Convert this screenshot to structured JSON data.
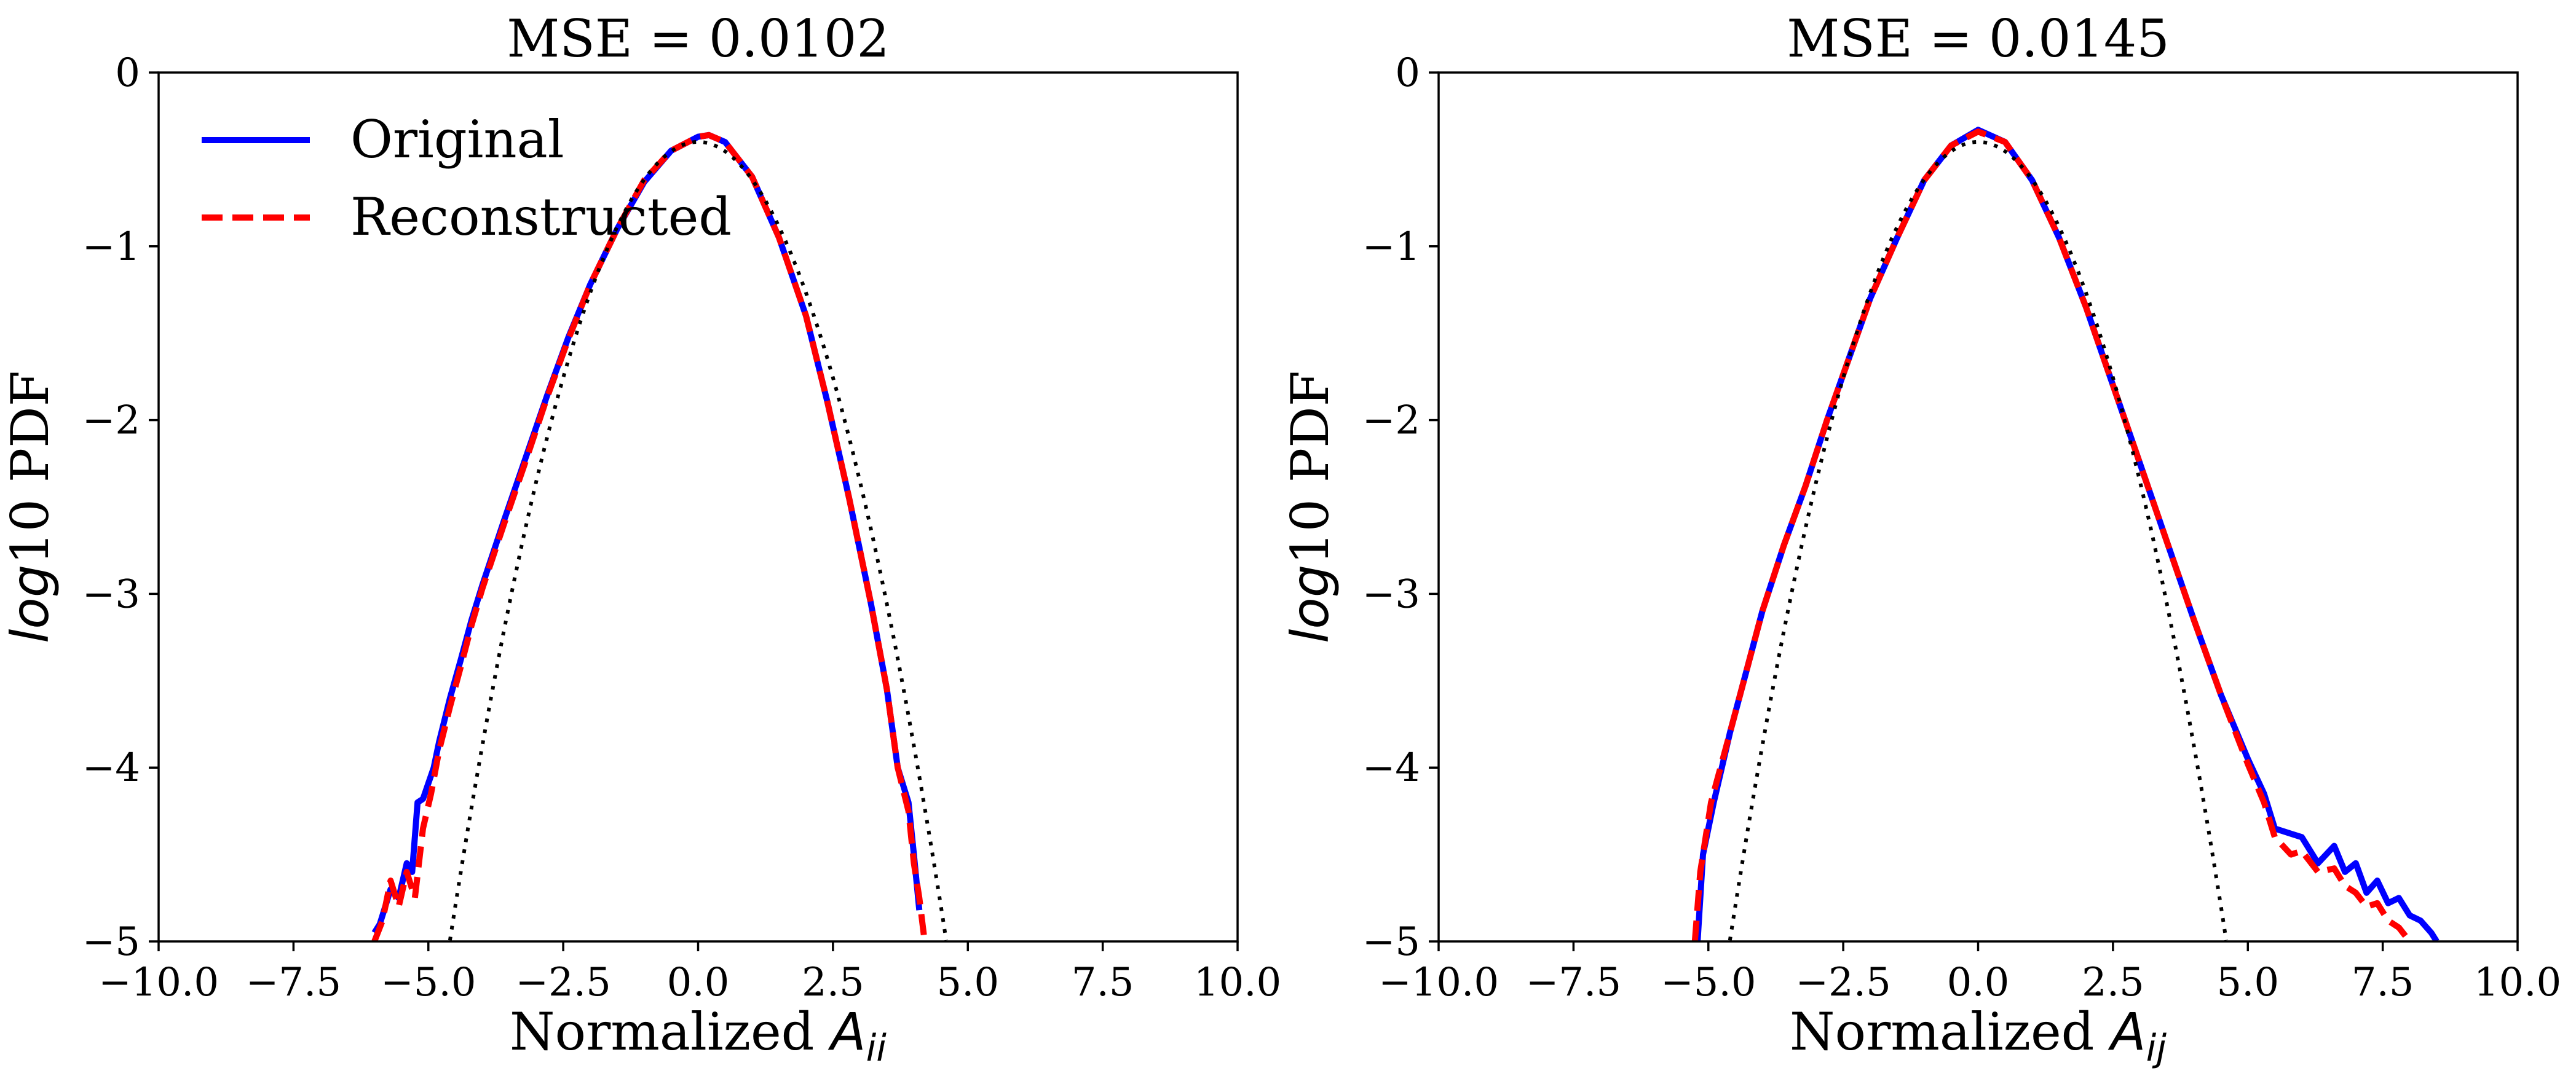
{
  "chart_data": [
    {
      "type": "line",
      "title": "MSE = 0.0102",
      "xlabel_text": "Normalized ",
      "xlabel_math": "A",
      "xlabel_sub": "ii",
      "ylabel_math": "log",
      "ylabel_text": "10 PDF",
      "xlim": [
        -10,
        10
      ],
      "ylim": [
        -5,
        0
      ],
      "xticks": [
        -10,
        -7.5,
        -5,
        -2.5,
        0,
        2.5,
        5,
        7.5,
        10
      ],
      "xtick_labels": [
        "−10.0",
        "−7.5",
        "−5.0",
        "−2.5",
        "0.0",
        "2.5",
        "5.0",
        "7.5",
        "10.0"
      ],
      "yticks": [
        0,
        -1,
        -2,
        -3,
        -4,
        -5
      ],
      "ytick_labels": [
        "0",
        "−1",
        "−2",
        "−3",
        "−4",
        "−5"
      ],
      "legend": {
        "location": "upper-left",
        "entries": [
          "Original",
          "Reconstructed"
        ]
      },
      "series": [
        {
          "name": "Original",
          "color": "#0000ff",
          "style": "solid",
          "x": [
            -6.0,
            -5.9,
            -5.7,
            -5.55,
            -5.4,
            -5.3,
            -5.2,
            -5.1,
            -4.9,
            -4.8,
            -4.6,
            -4.4,
            -4.2,
            -4.0,
            -3.6,
            -3.2,
            -2.8,
            -2.4,
            -2.0,
            -1.5,
            -1.0,
            -0.5,
            0.0,
            0.2,
            0.5,
            1.0,
            1.5,
            2.0,
            2.4,
            2.8,
            3.2,
            3.5,
            3.7,
            3.9,
            4.0,
            4.1
          ],
          "y": [
            -4.95,
            -4.9,
            -4.7,
            -4.75,
            -4.55,
            -4.6,
            -4.2,
            -4.18,
            -4.0,
            -3.85,
            -3.6,
            -3.38,
            -3.15,
            -2.95,
            -2.58,
            -2.22,
            -1.86,
            -1.52,
            -1.22,
            -0.9,
            -0.63,
            -0.45,
            -0.37,
            -0.36,
            -0.4,
            -0.6,
            -0.95,
            -1.4,
            -1.9,
            -2.45,
            -3.05,
            -3.55,
            -4.0,
            -4.2,
            -4.5,
            -4.82
          ]
        },
        {
          "name": "Reconstructed",
          "color": "#ff0000",
          "style": "dashed",
          "x": [
            -6.0,
            -5.85,
            -5.7,
            -5.55,
            -5.4,
            -5.25,
            -5.1,
            -4.95,
            -4.8,
            -4.6,
            -4.4,
            -4.2,
            -4.0,
            -3.6,
            -3.2,
            -2.8,
            -2.4,
            -2.0,
            -1.5,
            -1.0,
            -0.5,
            0.0,
            0.2,
            0.5,
            1.0,
            1.5,
            2.0,
            2.4,
            2.8,
            3.2,
            3.5,
            3.7,
            3.9,
            4.0,
            4.1,
            4.2
          ],
          "y": [
            -5.0,
            -4.88,
            -4.65,
            -4.8,
            -4.6,
            -4.75,
            -4.35,
            -4.15,
            -3.9,
            -3.65,
            -3.42,
            -3.18,
            -2.97,
            -2.6,
            -2.24,
            -1.87,
            -1.53,
            -1.22,
            -0.9,
            -0.62,
            -0.45,
            -0.37,
            -0.36,
            -0.4,
            -0.6,
            -0.95,
            -1.4,
            -1.9,
            -2.45,
            -3.05,
            -3.55,
            -4.0,
            -4.25,
            -4.55,
            -4.75,
            -5.0
          ]
        },
        {
          "color": "#000000",
          "style": "dotted",
          "gaussian": true,
          "x_range": [
            -4.6,
            4.6
          ],
          "mean": 0,
          "std": 1
        }
      ]
    },
    {
      "type": "line",
      "title": "MSE = 0.0145",
      "xlabel_text": "Normalized ",
      "xlabel_math": "A",
      "xlabel_sub": "ij",
      "ylabel_math": "log",
      "ylabel_text": "10 PDF",
      "xlim": [
        -10,
        10
      ],
      "ylim": [
        -5,
        0
      ],
      "xticks": [
        -10,
        -7.5,
        -5,
        -2.5,
        0,
        2.5,
        5,
        7.5,
        10
      ],
      "xtick_labels": [
        "−10.0",
        "−7.5",
        "−5.0",
        "−2.5",
        "0.0",
        "2.5",
        "5.0",
        "7.5",
        "10.0"
      ],
      "yticks": [
        0,
        -1,
        -2,
        -3,
        -4,
        -5
      ],
      "ytick_labels": [
        "0",
        "−1",
        "−2",
        "−3",
        "−4",
        "−5"
      ],
      "series": [
        {
          "name": "Original",
          "color": "#0000ff",
          "style": "solid",
          "x": [
            -5.2,
            -5.1,
            -4.9,
            -4.6,
            -4.3,
            -4.0,
            -3.6,
            -3.2,
            -2.8,
            -2.4,
            -2.0,
            -1.5,
            -1.0,
            -0.5,
            0.0,
            0.5,
            1.0,
            1.5,
            2.0,
            2.5,
            3.0,
            3.5,
            4.0,
            4.5,
            5.0,
            5.3,
            5.5,
            5.8,
            6.0,
            6.3,
            6.6,
            6.8,
            7.0,
            7.2,
            7.4,
            7.6,
            7.8,
            8.0,
            8.2,
            8.4,
            8.5
          ],
          "y": [
            -5.0,
            -4.5,
            -4.2,
            -3.8,
            -3.45,
            -3.1,
            -2.72,
            -2.38,
            -2.0,
            -1.65,
            -1.3,
            -0.95,
            -0.62,
            -0.42,
            -0.33,
            -0.4,
            -0.62,
            -0.95,
            -1.35,
            -1.8,
            -2.25,
            -2.7,
            -3.15,
            -3.58,
            -3.95,
            -4.15,
            -4.35,
            -4.38,
            -4.4,
            -4.55,
            -4.45,
            -4.6,
            -4.55,
            -4.72,
            -4.65,
            -4.78,
            -4.75,
            -4.85,
            -4.88,
            -4.95,
            -5.0
          ]
        },
        {
          "name": "Reconstructed",
          "color": "#ff0000",
          "style": "dashed",
          "x": [
            -5.25,
            -5.15,
            -4.95,
            -4.6,
            -4.3,
            -4.0,
            -3.6,
            -3.2,
            -2.8,
            -2.4,
            -2.0,
            -1.5,
            -1.0,
            -0.5,
            0.0,
            0.5,
            1.0,
            1.5,
            2.0,
            2.5,
            3.0,
            3.5,
            4.0,
            4.5,
            5.0,
            5.3,
            5.5,
            5.8,
            6.0,
            6.3,
            6.6,
            6.8,
            7.0,
            7.2,
            7.4,
            7.6,
            7.8,
            8.0
          ],
          "y": [
            -5.0,
            -4.6,
            -4.2,
            -3.8,
            -3.45,
            -3.1,
            -2.72,
            -2.38,
            -2.0,
            -1.65,
            -1.3,
            -0.95,
            -0.62,
            -0.42,
            -0.34,
            -0.4,
            -0.62,
            -0.95,
            -1.35,
            -1.8,
            -2.25,
            -2.7,
            -3.15,
            -3.58,
            -3.98,
            -4.2,
            -4.4,
            -4.5,
            -4.48,
            -4.6,
            -4.58,
            -4.68,
            -4.72,
            -4.8,
            -4.78,
            -4.88,
            -4.92,
            -5.0
          ]
        },
        {
          "color": "#000000",
          "style": "dotted",
          "gaussian": true,
          "x_range": [
            -4.6,
            4.6
          ],
          "mean": 0,
          "std": 1
        }
      ]
    }
  ]
}
